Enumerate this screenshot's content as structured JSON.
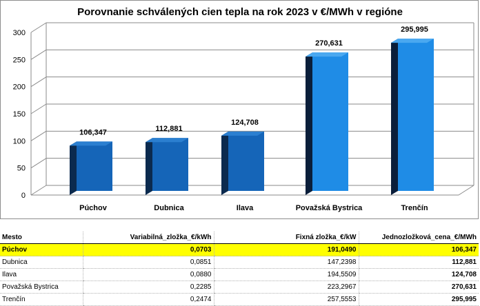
{
  "chart_data": {
    "type": "bar",
    "title": "Porovnanie schválených cien tepla na rok 2023 v €/MWh v regióne",
    "categories": [
      "Púchov",
      "Dubnica",
      "Ilava",
      "Považská Bystrica",
      "Trenčín"
    ],
    "values": [
      106.347,
      112.881,
      124.708,
      270.631,
      295.995
    ],
    "data_labels": [
      "106,347",
      "112,881",
      "124,708",
      "270,631",
      "295,995"
    ],
    "ylim": [
      0,
      300
    ],
    "yticks": [
      "0",
      "50",
      "100",
      "150",
      "200",
      "250",
      "300"
    ],
    "grid": true,
    "legend": "none",
    "colors": {
      "front_low": "#1565b8",
      "side_low": "#0b2a4e",
      "front_high": "#1f8ce6",
      "side_high": "#0a1e3a"
    }
  },
  "table": {
    "headers": [
      "Mesto",
      "Variabilná_zložka_€/kWh",
      "Fixná zložka_€/kW",
      "Jednozložková_cena_€/MWh"
    ],
    "rows": [
      [
        "Púchov",
        "0,0703",
        "191,0490",
        "106,347"
      ],
      [
        "Dubnica",
        "0,0851",
        "147,2398",
        "112,881"
      ],
      [
        "Ilava",
        "0,0880",
        "194,5509",
        "124,708"
      ],
      [
        "Považská Bystrica",
        "0,2285",
        "223,2967",
        "270,631"
      ],
      [
        "Trenčín",
        "0,2474",
        "257,5553",
        "295,995"
      ]
    ],
    "highlight_color": "#ffff00"
  }
}
